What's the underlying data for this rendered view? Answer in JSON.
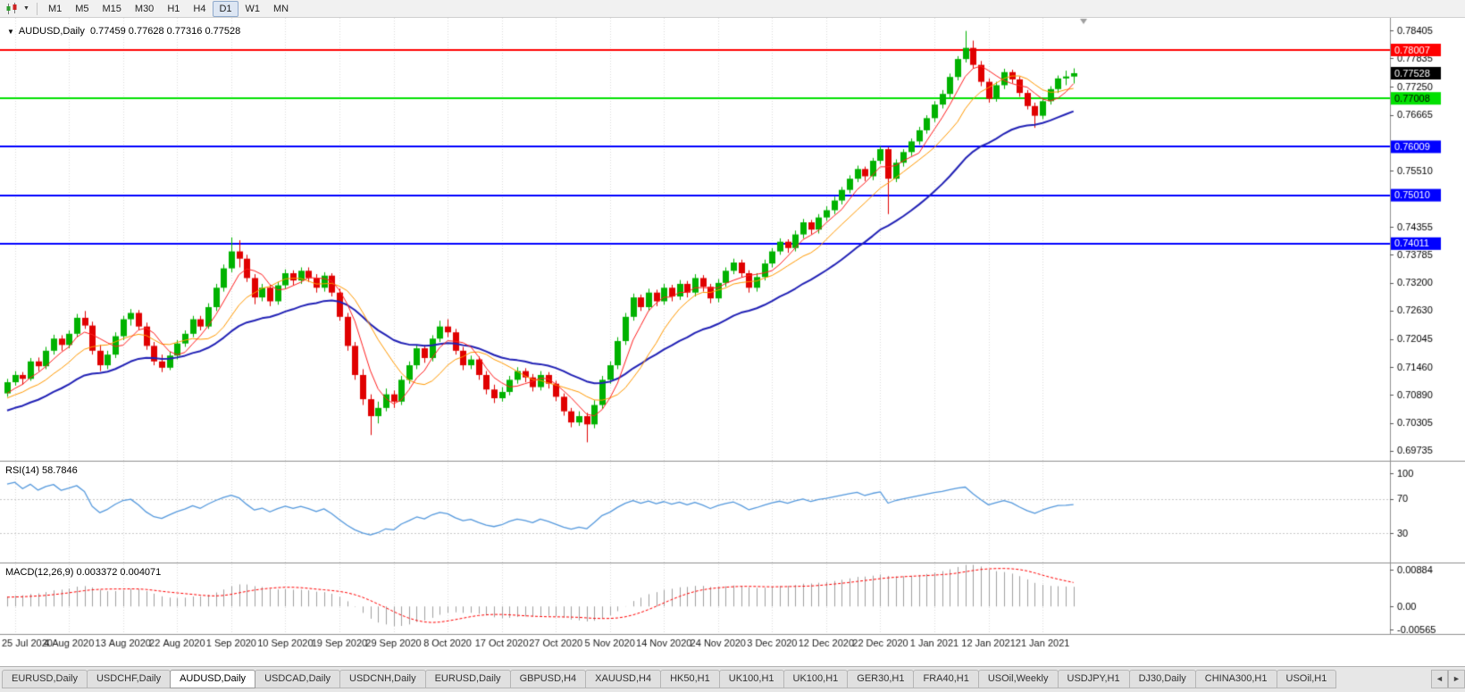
{
  "toolbar": {
    "timeframes": [
      "M1",
      "M5",
      "M15",
      "M30",
      "H1",
      "H4",
      "D1",
      "W1",
      "MN"
    ],
    "active_timeframe": "D1",
    "dropdown_glyph": "▼"
  },
  "chart": {
    "title_arrow": "▼",
    "title_text": "AUDUSD,Daily  0.77459 0.77628 0.77316 0.77528"
  },
  "chart_data": {
    "type": "candlestick",
    "symbol": "AUDUSD",
    "timeframe": "Daily",
    "ohlc_current": {
      "open": 0.77459,
      "high": 0.77628,
      "low": 0.77316,
      "close": 0.77528
    },
    "price_range": [
      0.6953,
      0.7867
    ],
    "price_axis_labels": [
      "0.78405",
      "0.77835",
      "0.77250",
      "0.76665",
      "0.76080",
      "0.75510",
      "0.74935",
      "0.74355",
      "0.73785",
      "0.73200",
      "0.72630",
      "0.72045",
      "0.71460",
      "0.70890",
      "0.70305",
      "0.69735"
    ],
    "date_axis_labels": [
      {
        "i": 1,
        "label": "25 Jul 2020"
      },
      {
        "i": 8,
        "label": "4 Aug 2020"
      },
      {
        "i": 15,
        "label": "13 Aug 2020"
      },
      {
        "i": 22,
        "label": "22 Aug 2020"
      },
      {
        "i": 29,
        "label": "1 Sep 2020"
      },
      {
        "i": 36,
        "label": "10 Sep 2020"
      },
      {
        "i": 43,
        "label": "19 Sep 2020"
      },
      {
        "i": 50,
        "label": "29 Sep 2020"
      },
      {
        "i": 57,
        "label": "8 Oct 2020"
      },
      {
        "i": 64,
        "label": "17 Oct 2020"
      },
      {
        "i": 71,
        "label": "27 Oct 2020"
      },
      {
        "i": 78,
        "label": "5 Nov 2020"
      },
      {
        "i": 85,
        "label": "14 Nov 2020"
      },
      {
        "i": 92,
        "label": "24 Nov 2020"
      },
      {
        "i": 99,
        "label": "3 Dec 2020"
      },
      {
        "i": 106,
        "label": "12 Dec 2020"
      },
      {
        "i": 113,
        "label": "22 Dec 2020"
      },
      {
        "i": 120,
        "label": "1 Jan 2021"
      },
      {
        "i": 127,
        "label": "12 Jan 2021"
      },
      {
        "i": 134,
        "label": "21 Jan 2021"
      }
    ],
    "candles": [
      [
        0.7092,
        0.7122,
        0.7085,
        0.7115
      ],
      [
        0.7115,
        0.7138,
        0.7108,
        0.713
      ],
      [
        0.713,
        0.7136,
        0.711,
        0.7122
      ],
      [
        0.7122,
        0.7165,
        0.7118,
        0.7158
      ],
      [
        0.7158,
        0.7166,
        0.7138,
        0.7148
      ],
      [
        0.7148,
        0.7188,
        0.7142,
        0.718
      ],
      [
        0.718,
        0.7213,
        0.7172,
        0.7205
      ],
      [
        0.7205,
        0.7212,
        0.718,
        0.7192
      ],
      [
        0.7192,
        0.7222,
        0.7185,
        0.7215
      ],
      [
        0.7215,
        0.7256,
        0.7208,
        0.7248
      ],
      [
        0.7248,
        0.7262,
        0.7225,
        0.7232
      ],
      [
        0.7232,
        0.724,
        0.7172,
        0.718
      ],
      [
        0.718,
        0.7192,
        0.7138,
        0.715
      ],
      [
        0.715,
        0.718,
        0.7142,
        0.7172
      ],
      [
        0.7172,
        0.7218,
        0.7165,
        0.721
      ],
      [
        0.721,
        0.7252,
        0.7202,
        0.7245
      ],
      [
        0.7245,
        0.7266,
        0.7232,
        0.7258
      ],
      [
        0.7258,
        0.7264,
        0.7222,
        0.723
      ],
      [
        0.723,
        0.7238,
        0.7182,
        0.719
      ],
      [
        0.719,
        0.7198,
        0.715,
        0.7158
      ],
      [
        0.7158,
        0.7172,
        0.7136,
        0.7145
      ],
      [
        0.7145,
        0.7178,
        0.714,
        0.717
      ],
      [
        0.717,
        0.7202,
        0.7162,
        0.7195
      ],
      [
        0.7195,
        0.7222,
        0.7188,
        0.7215
      ],
      [
        0.7215,
        0.7252,
        0.7208,
        0.7245
      ],
      [
        0.7245,
        0.7252,
        0.7222,
        0.723
      ],
      [
        0.723,
        0.7278,
        0.7225,
        0.727
      ],
      [
        0.727,
        0.7318,
        0.7262,
        0.731
      ],
      [
        0.731,
        0.7358,
        0.7302,
        0.735
      ],
      [
        0.735,
        0.7414,
        0.7342,
        0.7385
      ],
      [
        0.7385,
        0.7408,
        0.7352,
        0.737
      ],
      [
        0.737,
        0.7378,
        0.7322,
        0.733
      ],
      [
        0.733,
        0.7338,
        0.7276,
        0.729
      ],
      [
        0.729,
        0.7318,
        0.7282,
        0.731
      ],
      [
        0.731,
        0.7316,
        0.7272,
        0.7282
      ],
      [
        0.7282,
        0.7322,
        0.7275,
        0.7315
      ],
      [
        0.7315,
        0.7348,
        0.7308,
        0.734
      ],
      [
        0.734,
        0.7346,
        0.7315,
        0.7325
      ],
      [
        0.7325,
        0.7352,
        0.7318,
        0.7345
      ],
      [
        0.7345,
        0.7352,
        0.7322,
        0.733
      ],
      [
        0.733,
        0.7338,
        0.73,
        0.731
      ],
      [
        0.731,
        0.7342,
        0.7302,
        0.7335
      ],
      [
        0.7335,
        0.734,
        0.7292,
        0.73
      ],
      [
        0.73,
        0.7308,
        0.7242,
        0.725
      ],
      [
        0.725,
        0.7258,
        0.718,
        0.719
      ],
      [
        0.719,
        0.7198,
        0.712,
        0.713
      ],
      [
        0.713,
        0.7142,
        0.7068,
        0.708
      ],
      [
        0.708,
        0.709,
        0.7006,
        0.7045
      ],
      [
        0.7045,
        0.7075,
        0.703,
        0.7062
      ],
      [
        0.7062,
        0.7102,
        0.7055,
        0.709
      ],
      [
        0.709,
        0.7098,
        0.7062,
        0.7075
      ],
      [
        0.7075,
        0.7128,
        0.7068,
        0.712
      ],
      [
        0.712,
        0.7158,
        0.7112,
        0.715
      ],
      [
        0.715,
        0.7192,
        0.7142,
        0.7185
      ],
      [
        0.7185,
        0.7192,
        0.7155,
        0.7165
      ],
      [
        0.7165,
        0.7212,
        0.7158,
        0.7205
      ],
      [
        0.7205,
        0.7242,
        0.7198,
        0.723
      ],
      [
        0.723,
        0.7245,
        0.7208,
        0.7218
      ],
      [
        0.7218,
        0.7225,
        0.7172,
        0.718
      ],
      [
        0.718,
        0.7188,
        0.714,
        0.715
      ],
      [
        0.715,
        0.717,
        0.7142,
        0.7162
      ],
      [
        0.7162,
        0.7168,
        0.712,
        0.713
      ],
      [
        0.713,
        0.7138,
        0.709,
        0.71
      ],
      [
        0.71,
        0.711,
        0.7072,
        0.7082
      ],
      [
        0.7082,
        0.7105,
        0.7075,
        0.7095
      ],
      [
        0.7095,
        0.7128,
        0.7088,
        0.712
      ],
      [
        0.712,
        0.7146,
        0.7112,
        0.7138
      ],
      [
        0.7138,
        0.7144,
        0.7115,
        0.7125
      ],
      [
        0.7125,
        0.7132,
        0.7096,
        0.7105
      ],
      [
        0.7105,
        0.7138,
        0.7098,
        0.713
      ],
      [
        0.713,
        0.7136,
        0.7102,
        0.7112
      ],
      [
        0.7112,
        0.7118,
        0.7076,
        0.7085
      ],
      [
        0.7085,
        0.7092,
        0.7046,
        0.7055
      ],
      [
        0.7055,
        0.7062,
        0.7022,
        0.7032
      ],
      [
        0.7032,
        0.7055,
        0.7025,
        0.7045
      ],
      [
        0.7045,
        0.7052,
        0.6991,
        0.7028
      ],
      [
        0.7028,
        0.7078,
        0.702,
        0.7068
      ],
      [
        0.7068,
        0.7128,
        0.706,
        0.712
      ],
      [
        0.712,
        0.7158,
        0.7112,
        0.715
      ],
      [
        0.715,
        0.7208,
        0.7142,
        0.72
      ],
      [
        0.72,
        0.7258,
        0.7192,
        0.725
      ],
      [
        0.725,
        0.7298,
        0.7242,
        0.729
      ],
      [
        0.729,
        0.7296,
        0.7262,
        0.727
      ],
      [
        0.727,
        0.7308,
        0.7262,
        0.73
      ],
      [
        0.73,
        0.7306,
        0.7272,
        0.7282
      ],
      [
        0.7282,
        0.7318,
        0.7275,
        0.731
      ],
      [
        0.731,
        0.7316,
        0.7282,
        0.7292
      ],
      [
        0.7292,
        0.7326,
        0.7285,
        0.7318
      ],
      [
        0.7318,
        0.7324,
        0.729,
        0.73
      ],
      [
        0.73,
        0.7338,
        0.7292,
        0.733
      ],
      [
        0.733,
        0.7336,
        0.7302,
        0.7312
      ],
      [
        0.7312,
        0.7318,
        0.7278,
        0.7288
      ],
      [
        0.7288,
        0.7328,
        0.728,
        0.732
      ],
      [
        0.732,
        0.7352,
        0.7312,
        0.7345
      ],
      [
        0.7345,
        0.737,
        0.7338,
        0.7362
      ],
      [
        0.7362,
        0.7368,
        0.7332,
        0.734
      ],
      [
        0.734,
        0.7346,
        0.73,
        0.731
      ],
      [
        0.731,
        0.734,
        0.7302,
        0.7332
      ],
      [
        0.7332,
        0.7368,
        0.7325,
        0.736
      ],
      [
        0.736,
        0.7392,
        0.7352,
        0.7385
      ],
      [
        0.7385,
        0.7412,
        0.7378,
        0.7405
      ],
      [
        0.7405,
        0.741,
        0.7382,
        0.7392
      ],
      [
        0.7392,
        0.7428,
        0.7385,
        0.742
      ],
      [
        0.742,
        0.7452,
        0.7412,
        0.7445
      ],
      [
        0.7445,
        0.745,
        0.742,
        0.743
      ],
      [
        0.743,
        0.7462,
        0.7422,
        0.7455
      ],
      [
        0.7455,
        0.7478,
        0.7448,
        0.747
      ],
      [
        0.747,
        0.7498,
        0.7462,
        0.749
      ],
      [
        0.749,
        0.7518,
        0.7482,
        0.7512
      ],
      [
        0.7512,
        0.7542,
        0.7505,
        0.7535
      ],
      [
        0.7535,
        0.7562,
        0.7528,
        0.7555
      ],
      [
        0.7555,
        0.756,
        0.753,
        0.754
      ],
      [
        0.754,
        0.7578,
        0.7532,
        0.7572
      ],
      [
        0.7572,
        0.7602,
        0.7565,
        0.7596
      ],
      [
        0.7596,
        0.76,
        0.7462,
        0.7535
      ],
      [
        0.7535,
        0.7575,
        0.7528,
        0.7568
      ],
      [
        0.7568,
        0.7596,
        0.756,
        0.759
      ],
      [
        0.759,
        0.7618,
        0.7582,
        0.7612
      ],
      [
        0.7612,
        0.7642,
        0.7605,
        0.7635
      ],
      [
        0.7635,
        0.7666,
        0.7628,
        0.766
      ],
      [
        0.766,
        0.7695,
        0.7652,
        0.7688
      ],
      [
        0.7688,
        0.7718,
        0.768,
        0.771
      ],
      [
        0.771,
        0.7752,
        0.7702,
        0.7745
      ],
      [
        0.7745,
        0.7788,
        0.7738,
        0.7782
      ],
      [
        0.7782,
        0.784,
        0.7775,
        0.7805
      ],
      [
        0.7805,
        0.782,
        0.7762,
        0.777
      ],
      [
        0.777,
        0.7778,
        0.7726,
        0.7735
      ],
      [
        0.7735,
        0.7742,
        0.7692,
        0.77
      ],
      [
        0.77,
        0.7735,
        0.7694,
        0.7728
      ],
      [
        0.7728,
        0.7762,
        0.772,
        0.7755
      ],
      [
        0.7755,
        0.776,
        0.7732,
        0.774
      ],
      [
        0.774,
        0.7746,
        0.7704,
        0.7712
      ],
      [
        0.7712,
        0.7718,
        0.7678,
        0.7685
      ],
      [
        0.7685,
        0.7692,
        0.764,
        0.7665
      ],
      [
        0.7665,
        0.7702,
        0.7658,
        0.7695
      ],
      [
        0.7695,
        0.7726,
        0.7688,
        0.772
      ],
      [
        0.772,
        0.7748,
        0.7712,
        0.7742
      ],
      [
        0.7742,
        0.7758,
        0.7728,
        0.7746
      ],
      [
        0.77459,
        0.77628,
        0.77316,
        0.77528
      ]
    ],
    "candle_colors": {
      "up": "#00b200",
      "down": "#e00000"
    },
    "horizontal_lines": [
      {
        "price": 0.78007,
        "label": "0.78007",
        "color": "#ff0000",
        "text_color": "#ffffff",
        "width": 2
      },
      {
        "price": 0.77008,
        "label": "0.77008",
        "color": "#00e000",
        "text_color": "#000000",
        "width": 2
      },
      {
        "price": 0.76009,
        "label": "0.76009",
        "color": "#0000ff",
        "text_color": "#ffffff",
        "width": 2
      },
      {
        "price": 0.7501,
        "label": "0.75010",
        "color": "#0000ff",
        "text_color": "#ffffff",
        "width": 2
      },
      {
        "price": 0.74011,
        "label": "0.74011",
        "color": "#0000ff",
        "text_color": "#ffffff",
        "width": 2
      }
    ],
    "current_price_box": {
      "price": 0.77528,
      "label": "0.77528",
      "color": "#000000",
      "text_color": "#ffffff"
    },
    "moving_averages": [
      {
        "name": "slow-ma",
        "type": "ema",
        "period": 26,
        "color": "#2121b5",
        "width": 2
      },
      {
        "name": "medium-ma",
        "type": "sma",
        "period": 10,
        "color": "#ff9900",
        "width": 1
      },
      {
        "name": "fast-ma",
        "type": "sma",
        "period": 5,
        "color": "#ff2020",
        "width": 1
      }
    ],
    "rsi": {
      "label": "RSI(14) 58.7846",
      "period": 14,
      "value": 58.7846,
      "color": "#5599dd",
      "axis_labels": [
        100,
        70,
        30
      ],
      "levels": [
        70,
        30
      ]
    },
    "macd": {
      "label": "MACD(12,26,9) 0.003372 0.004071",
      "fast": 12,
      "slow": 26,
      "signal": 9,
      "values": [
        0.003372,
        0.004071
      ],
      "range": [
        -0.0062,
        0.0093
      ],
      "axis_labels": [
        {
          "v": 0.00884,
          "label": "0.00884"
        },
        {
          "v": 0,
          "label": "0.00"
        },
        {
          "v": -0.00565,
          "label": "-0.00565"
        }
      ],
      "histogram_color": "#a0a0a0",
      "signal_color": "#ff0000"
    }
  },
  "tabs": {
    "items": [
      "EURUSD,Daily",
      "USDCHF,Daily",
      "AUDUSD,Daily",
      "USDCAD,Daily",
      "USDCNH,Daily",
      "EURUSD,Daily",
      "GBPUSD,H4",
      "XAUUSD,H4",
      "HK50,H1",
      "UK100,H1",
      "UK100,H1",
      "GER30,H1",
      "FRA40,H1",
      "USOil,Weekly",
      "USDJPY,H1",
      "DJ30,Daily",
      "CHINA300,H1",
      "USOil,H1"
    ],
    "active_index": 2,
    "scroll_left_glyph": "◄",
    "scroll_right_glyph": "►"
  }
}
